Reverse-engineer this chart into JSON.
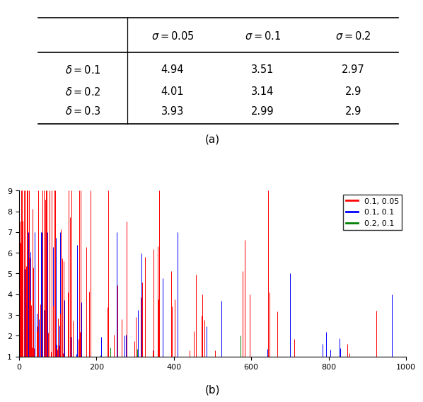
{
  "table": {
    "row_labels": [
      "\\delta = 0.1",
      "\\delta = 0.2",
      "\\delta = 0.3"
    ],
    "col_labels": [
      "\\sigma = 0.05",
      "\\sigma = 0.1",
      "\\sigma = 0.2"
    ],
    "values": [
      [
        "4.94",
        "3.51",
        "2.97"
      ],
      [
        "4.01",
        "3.14",
        "2.9"
      ],
      [
        "3.93",
        "2.99",
        "2.9"
      ]
    ],
    "caption": "(a)"
  },
  "chart": {
    "caption": "(b)",
    "legend_labels": [
      "0.1, 0.05",
      "0.1, 0.1",
      "0.2, 0.1"
    ],
    "colors": [
      "#ff0000",
      "#0000ff",
      "#008000"
    ],
    "ylim": [
      1,
      9
    ],
    "yticks": [
      1,
      2,
      3,
      4,
      5,
      6,
      7,
      8,
      9
    ],
    "xlim": [
      0,
      1000
    ],
    "xticks": [
      0,
      200,
      400,
      600,
      800,
      1000
    ]
  }
}
